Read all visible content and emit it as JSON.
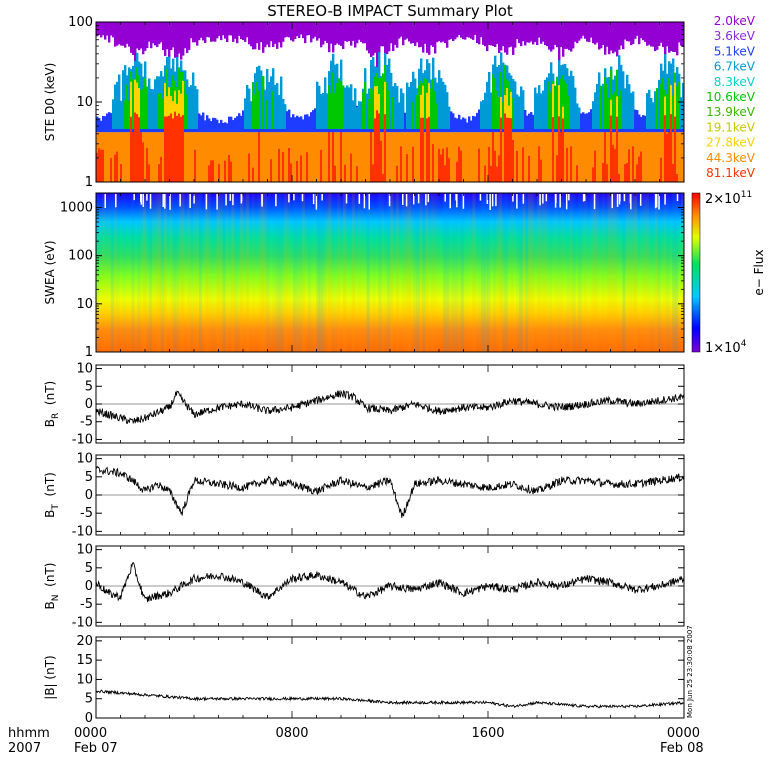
{
  "title": "STEREO-B IMPACT Summary Plot",
  "footer": {
    "row_label_top": "hhmm",
    "row_label_bottom": "2007",
    "date_left": "Feb 07",
    "date_right": "Feb 08",
    "timestamp": "Mon Jun 25 23:30:08 2007"
  },
  "x_axis": {
    "range_hours": [
      0,
      24
    ],
    "tick_hours": [
      0,
      8,
      16,
      24
    ],
    "tick_labels": [
      "0000",
      "0800",
      "1600",
      "0000"
    ]
  },
  "colors": {
    "energy_2.0": "#9400d3",
    "energy_3.6": "#8a2be2",
    "energy_5.1": "#1e3cff",
    "energy_6.7": "#009bd6",
    "energy_8.3": "#00d2c8",
    "energy_10.6": "#00c800",
    "energy_13.9": "#3cb400",
    "energy_19.1": "#c8c800",
    "energy_27.8": "#ffd200",
    "energy_44.3": "#ff8c00",
    "energy_81.1": "#ff3200",
    "trace": "#000000"
  },
  "chart_data": [
    {
      "type": "line",
      "panel": "ste",
      "ylabel": "STE D0 (keV)",
      "yscale": "log",
      "ylim": [
        1,
        100
      ],
      "ytick_labels": [
        "1",
        "10",
        "100"
      ],
      "legend_position": "right",
      "series": [
        {
          "name": "2.0keV"
        },
        {
          "name": "3.6keV"
        },
        {
          "name": "5.1keV"
        },
        {
          "name": "6.7keV"
        },
        {
          "name": "8.3keV"
        },
        {
          "name": "10.6keV"
        },
        {
          "name": "13.9keV"
        },
        {
          "name": "19.1keV"
        },
        {
          "name": "27.8keV"
        },
        {
          "name": "44.3keV"
        },
        {
          "name": "81.1keV"
        }
      ],
      "background_level": 1.0,
      "top_band_level": 90,
      "burst_peaks": [
        {
          "hour": 1.6,
          "value": 70
        },
        {
          "hour": 3.2,
          "value": 100
        },
        {
          "hour": 6.9,
          "value": 30
        },
        {
          "hour": 9.8,
          "value": 35
        },
        {
          "hour": 11.5,
          "value": 100
        },
        {
          "hour": 13.5,
          "value": 60
        },
        {
          "hour": 16.6,
          "value": 60
        },
        {
          "hour": 18.8,
          "value": 45
        },
        {
          "hour": 21.1,
          "value": 45
        },
        {
          "hour": 23.4,
          "value": 55
        }
      ]
    },
    {
      "type": "heatmap",
      "panel": "swea",
      "ylabel": "SWEA (eV)",
      "yscale": "log",
      "ylim": [
        1,
        2000
      ],
      "ytick_labels": [
        "1",
        "10",
        "100",
        "1000"
      ],
      "colorbar": {
        "label": "e− Flux",
        "max_label": "2×10",
        "max_exp": "11",
        "min_label": "1×10",
        "min_exp": "4",
        "scale": "log",
        "range": [
          10000,
          200000000000
        ]
      },
      "flux_profile": [
        {
          "energy_ev": 1,
          "flux": 50000000000.0
        },
        {
          "energy_ev": 10,
          "flux": 10000000000.0
        },
        {
          "energy_ev": 100,
          "flux": 100000000.0
        },
        {
          "energy_ev": 400,
          "flux": 3000000.0
        },
        {
          "energy_ev": 1000,
          "flux": 200000.0
        },
        {
          "energy_ev": 1500,
          "flux": 30000.0
        }
      ]
    },
    {
      "type": "line",
      "panel": "br",
      "ylabel": "B",
      "ylabel_sub": "R",
      "ylabel_unit": "(nT)",
      "ylim": [
        -11,
        11
      ],
      "ytick_labels": [
        "-10",
        "-5",
        "0",
        "5",
        "10"
      ],
      "x": [
        0,
        1,
        1.5,
        2,
        3,
        3.3,
        4,
        5,
        6,
        7,
        8,
        9,
        10,
        10.5,
        11,
        12,
        13,
        14,
        15,
        16,
        17,
        18,
        19,
        20,
        21,
        22,
        23,
        24
      ],
      "values": [
        -2,
        -4,
        -5,
        -4,
        -1,
        3,
        -3,
        -1,
        0,
        -2,
        -1,
        1,
        3,
        2,
        -1,
        -2,
        0,
        -2,
        -1,
        -1,
        1,
        0,
        -1,
        0,
        1,
        0,
        1,
        2
      ]
    },
    {
      "type": "line",
      "panel": "bt",
      "ylabel": "B",
      "ylabel_sub": "T",
      "ylabel_unit": "(nT)",
      "ylim": [
        -11,
        11
      ],
      "ytick_labels": [
        "-10",
        "-5",
        "0",
        "5",
        "10"
      ],
      "x": [
        0,
        1,
        1.5,
        2,
        2.5,
        3,
        3.5,
        4,
        5,
        6,
        7,
        8,
        9,
        10,
        11,
        12,
        12.5,
        13,
        14,
        15,
        16,
        17,
        18,
        19,
        20,
        21,
        22,
        23,
        24
      ],
      "values": [
        7,
        6,
        4,
        1,
        3,
        1,
        -5,
        4,
        3,
        2,
        4,
        3,
        1,
        4,
        2,
        4,
        -6,
        3,
        4,
        3,
        2,
        3,
        1,
        4,
        4,
        3,
        3,
        4,
        5
      ]
    },
    {
      "type": "line",
      "panel": "bn",
      "ylabel": "B",
      "ylabel_sub": "N",
      "ylabel_unit": "(nT)",
      "ylim": [
        -11,
        11
      ],
      "ytick_labels": [
        "-10",
        "-5",
        "0",
        "5",
        "10"
      ],
      "x": [
        0,
        0.5,
        1,
        1.5,
        2,
        2.3,
        3,
        4,
        5,
        6,
        7,
        8,
        9,
        10,
        11,
        12,
        13,
        14,
        15,
        16,
        17,
        18,
        19,
        20,
        21,
        22,
        23,
        24
      ],
      "values": [
        1,
        -2,
        -3,
        6,
        -4,
        -3,
        -2,
        2,
        3,
        1,
        -3,
        2,
        3,
        1,
        -3,
        0,
        -1,
        1,
        -2,
        0,
        -1,
        1,
        0,
        2,
        1,
        -1,
        0,
        2
      ]
    },
    {
      "type": "line",
      "panel": "bmag",
      "ylabel": "|B| (nT)",
      "ylim": [
        0,
        21
      ],
      "ytick_labels": [
        "0",
        "5",
        "10",
        "15",
        "20"
      ],
      "x": [
        0,
        2,
        4,
        6,
        8,
        10,
        12,
        14,
        16,
        17,
        18,
        20,
        22,
        24
      ],
      "values": [
        7,
        6,
        5,
        5,
        5,
        5,
        4,
        4,
        4,
        3,
        4,
        3,
        3,
        4
      ]
    }
  ]
}
